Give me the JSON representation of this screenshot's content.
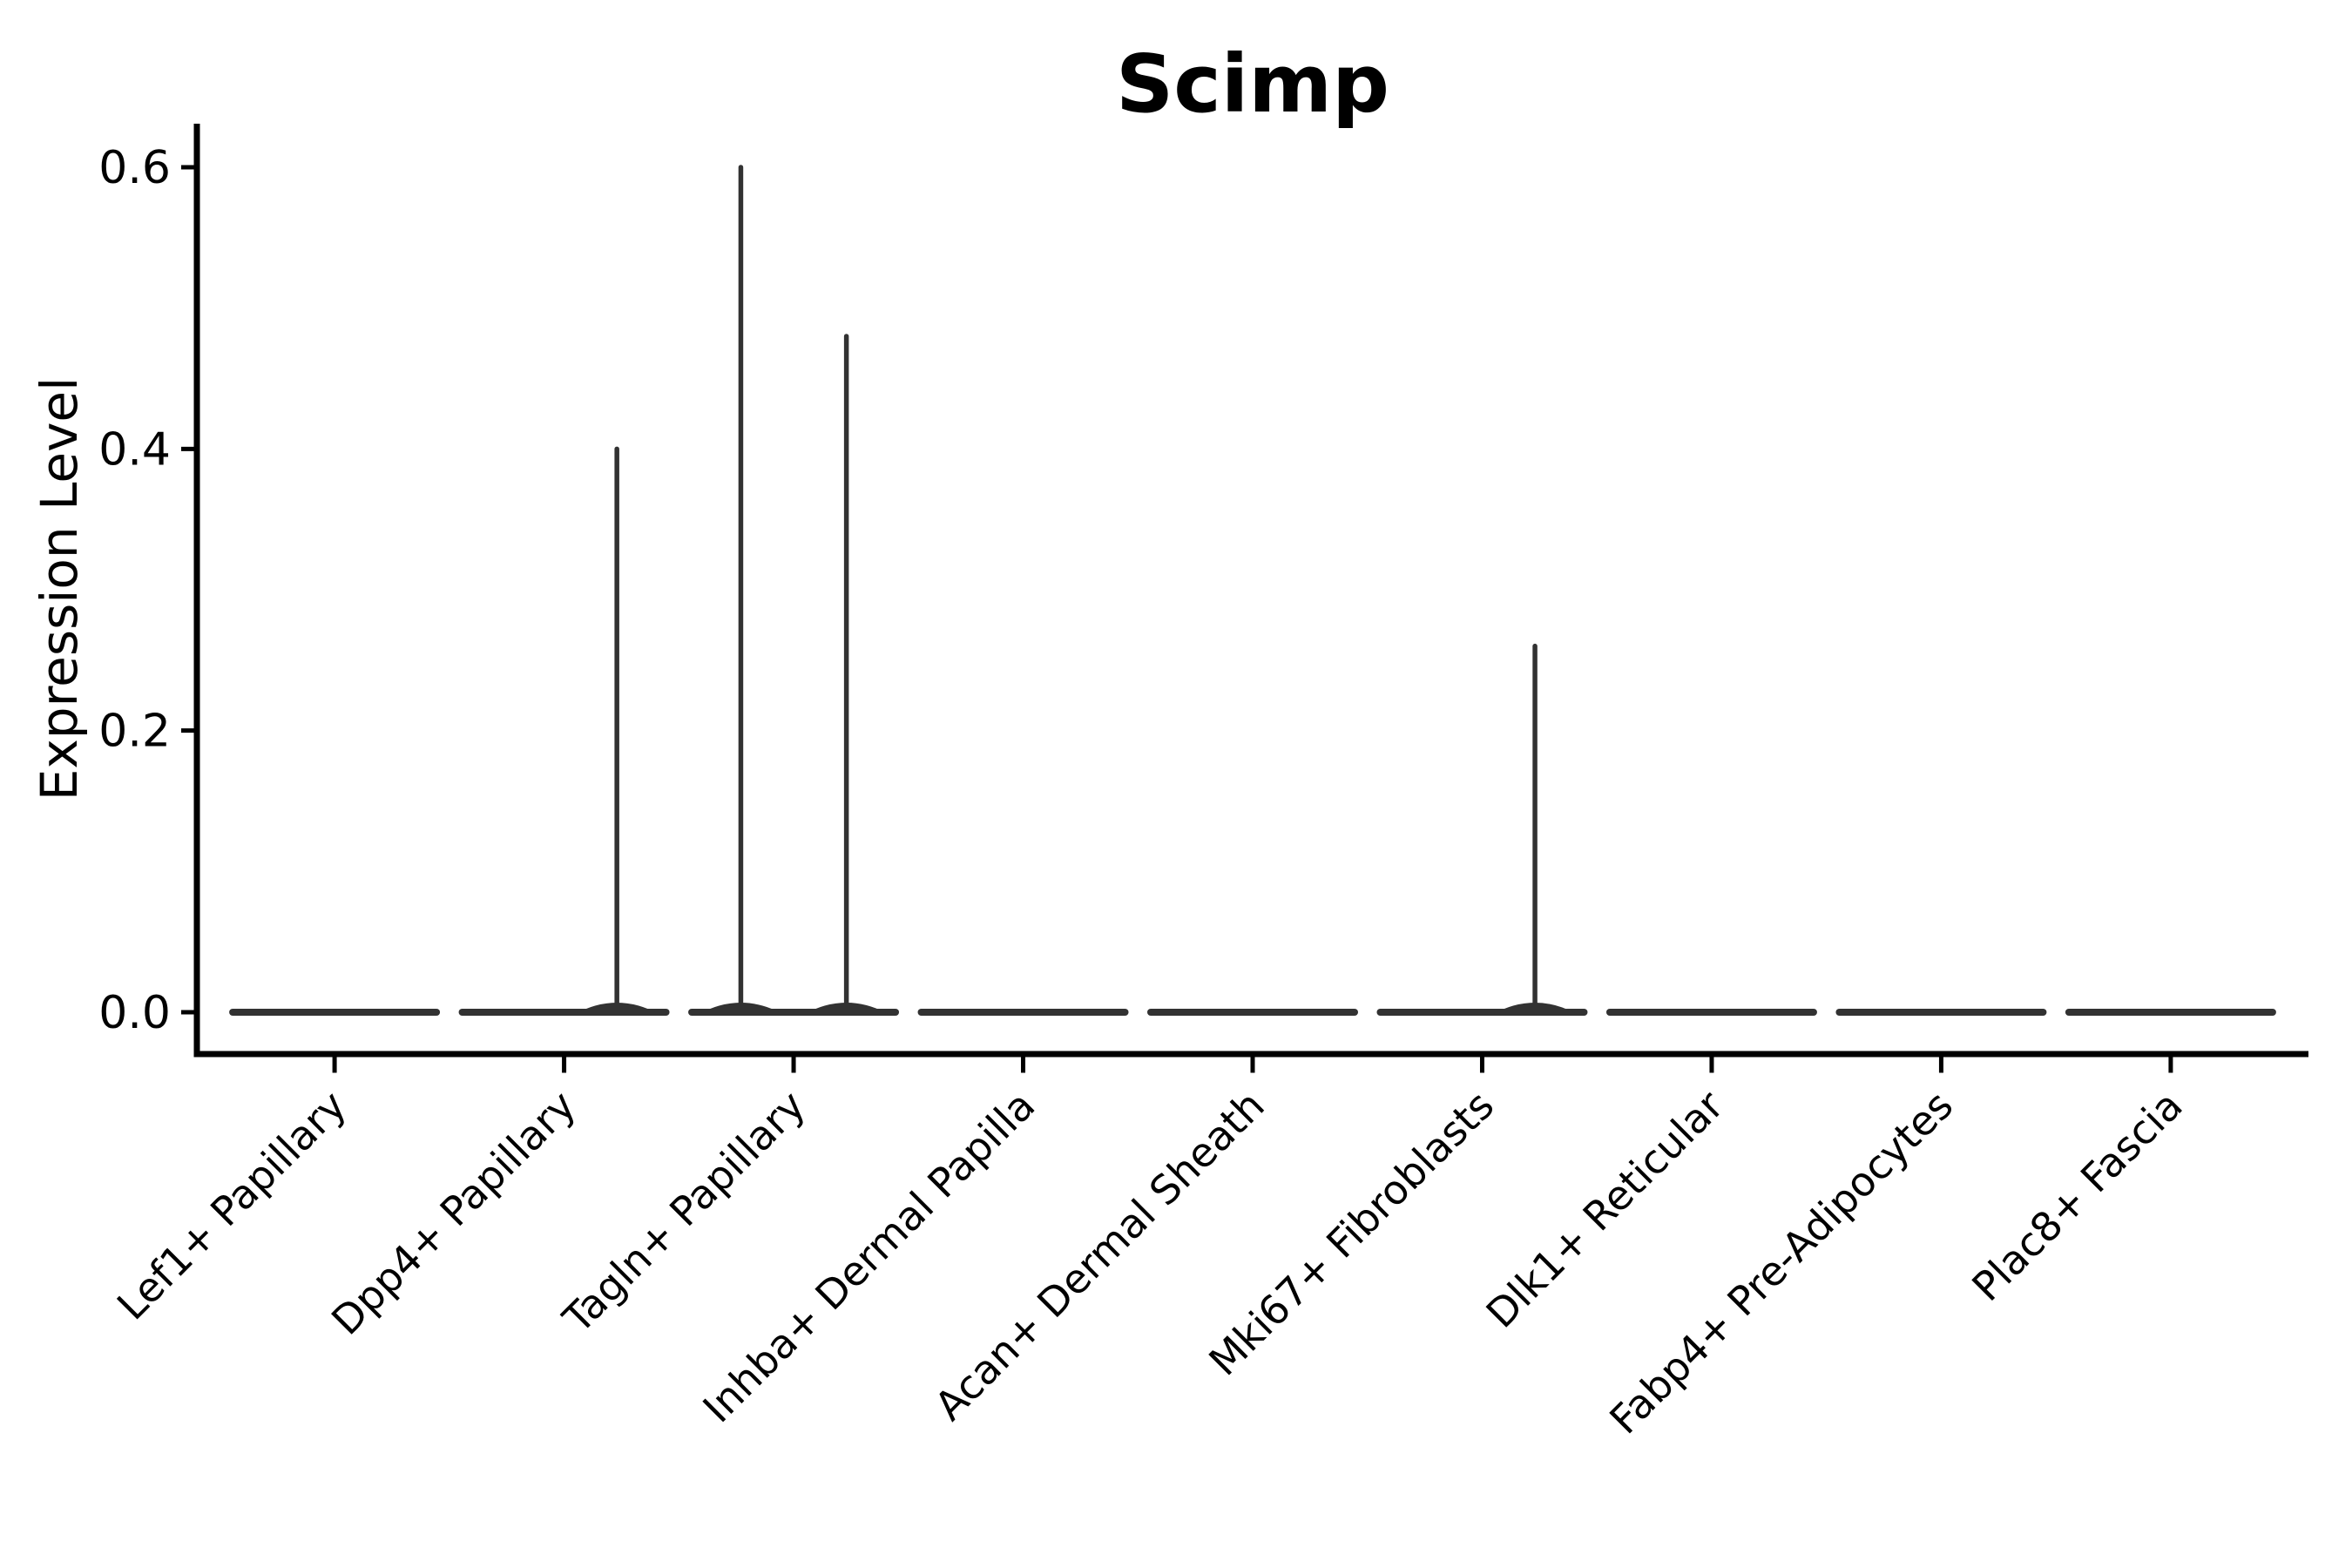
{
  "chart_data": {
    "type": "violin",
    "title": "Scimp",
    "ylabel": "Expression Level",
    "xlabel": "",
    "grid": false,
    "legend": false,
    "background": "#ffffff",
    "ylim": [
      0,
      0.62
    ],
    "ytick_values": [
      0.0,
      0.2,
      0.4,
      0.6
    ],
    "ytick_labels": [
      "0.0",
      "0.2",
      "0.4",
      "0.6"
    ],
    "categories": [
      "Lef1+ Papillary",
      "Dpp4+ Papillary",
      "Tagln+ Papillary",
      "Inhba+ Dermal Papilla",
      "Acan+ Dermal Sheath",
      "Mki67+ Fibroblasts",
      "Dlk1+ Reticular",
      "Fabp4+ Pre-Adipocytes",
      "Plac8+ Fascia"
    ],
    "violins": [
      {
        "category": "Lef1+ Papillary",
        "body": "flat-at-zero",
        "spikes": []
      },
      {
        "category": "Dpp4+ Papillary",
        "body": "flat-at-zero",
        "spikes": [
          {
            "offset": 0.23,
            "max": 0.4
          }
        ]
      },
      {
        "category": "Tagln+ Papillary",
        "body": "flat-at-zero",
        "spikes": [
          {
            "offset": -0.23,
            "max": 0.6
          },
          {
            "offset": 0.23,
            "max": 0.48
          }
        ]
      },
      {
        "category": "Inhba+ Dermal Papilla",
        "body": "flat-at-zero",
        "spikes": []
      },
      {
        "category": "Acan+ Dermal Sheath",
        "body": "flat-at-zero",
        "spikes": []
      },
      {
        "category": "Mki67+ Fibroblasts",
        "body": "flat-at-zero",
        "spikes": [
          {
            "offset": 0.23,
            "max": 0.26
          }
        ]
      },
      {
        "category": "Dlk1+ Reticular",
        "body": "flat-at-zero",
        "spikes": []
      },
      {
        "category": "Fabp4+ Pre-Adipocytes",
        "body": "flat-at-zero",
        "spikes": []
      },
      {
        "category": "Plac8+ Fascia",
        "body": "flat-at-zero",
        "spikes": []
      }
    ],
    "colors": {
      "violin": "#323232",
      "axis": "#000000",
      "text": "#000000",
      "background": "#ffffff"
    }
  }
}
